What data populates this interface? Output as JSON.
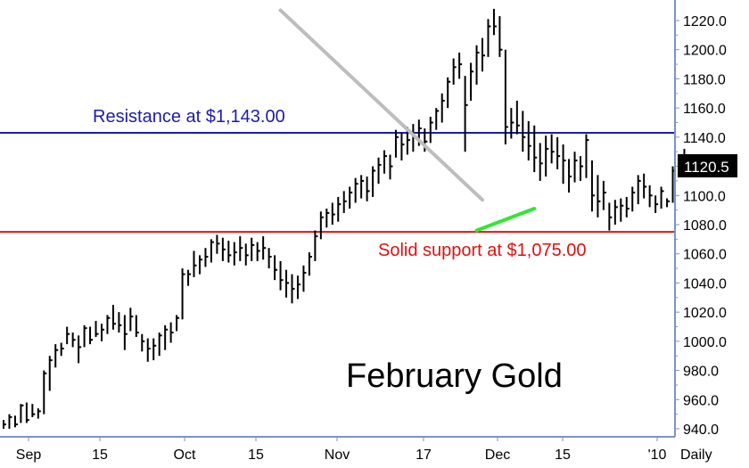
{
  "chart_data": {
    "type": "ohlc",
    "title": "February Gold",
    "period_label": "Daily",
    "ylim": [
      930,
      1232
    ],
    "y_ticks": [
      "940.0",
      "960.0",
      "980.0",
      "1000.0",
      "1020.0",
      "1040.0",
      "1060.0",
      "1080.0",
      "1100.0",
      "1120.0",
      "1140.0",
      "1160.0",
      "1180.0",
      "1200.0",
      "1220.0"
    ],
    "x_tick_labels": [
      "Sep",
      "15",
      "Oct",
      "15",
      "Nov",
      "17",
      "Dec",
      "15",
      "'10"
    ],
    "last_price": "1120.5",
    "grid": false,
    "lines": [
      {
        "name": "resistance",
        "label": "Resistance at $1,143.00",
        "value": 1143.0,
        "color": "#1c1ca8"
      },
      {
        "name": "support",
        "label": "Solid support at $1,075.00",
        "value": 1075.0,
        "color": "#e01010"
      }
    ],
    "trendlines": [
      {
        "name": "down-trendline",
        "color": "#bdbdbd",
        "from": [
          48,
          1227
        ],
        "to": [
          83,
          1097
        ]
      },
      {
        "name": "up-trendline",
        "color": "#33e633",
        "from": [
          82,
          1076
        ],
        "to": [
          92,
          1091
        ]
      }
    ],
    "bars": [
      [
        946,
        940,
        943
      ],
      [
        950,
        940,
        948
      ],
      [
        949,
        941,
        943
      ],
      [
        957,
        944,
        956
      ],
      [
        958,
        944,
        946
      ],
      [
        957,
        948,
        950
      ],
      [
        954,
        947,
        952
      ],
      [
        980,
        950,
        978
      ],
      [
        990,
        966,
        987
      ],
      [
        998,
        982,
        994
      ],
      [
        999,
        990,
        995
      ],
      [
        1010,
        998,
        1005
      ],
      [
        1006,
        996,
        1001
      ],
      [
        1004,
        985,
        996
      ],
      [
        1011,
        996,
        1009
      ],
      [
        1010,
        998,
        1001
      ],
      [
        1014,
        1003,
        1005
      ],
      [
        1012,
        1000,
        1008
      ],
      [
        1018,
        1005,
        1016
      ],
      [
        1025,
        1008,
        1012
      ],
      [
        1020,
        1006,
        1011
      ],
      [
        1018,
        994,
        1005
      ],
      [
        1023,
        1007,
        1017
      ],
      [
        1018,
        1003,
        1006
      ],
      [
        1005,
        993,
        1000
      ],
      [
        1002,
        986,
        995
      ],
      [
        1002,
        987,
        997
      ],
      [
        1006,
        990,
        1004
      ],
      [
        1011,
        994,
        1008
      ],
      [
        1013,
        999,
        1006
      ],
      [
        1018,
        1007,
        1016
      ],
      [
        1050,
        1015,
        1046
      ],
      [
        1049,
        1038,
        1046
      ],
      [
        1062,
        1044,
        1052
      ],
      [
        1059,
        1046,
        1056
      ],
      [
        1064,
        1051,
        1058
      ],
      [
        1070,
        1054,
        1068
      ],
      [
        1073,
        1060,
        1067
      ],
      [
        1071,
        1055,
        1063
      ],
      [
        1069,
        1054,
        1059
      ],
      [
        1068,
        1052,
        1061
      ],
      [
        1072,
        1055,
        1064
      ],
      [
        1067,
        1052,
        1059
      ],
      [
        1071,
        1055,
        1066
      ],
      [
        1068,
        1055,
        1062
      ],
      [
        1072,
        1056,
        1064
      ],
      [
        1064,
        1050,
        1058
      ],
      [
        1059,
        1042,
        1049
      ],
      [
        1055,
        1035,
        1042
      ],
      [
        1049,
        1030,
        1040
      ],
      [
        1046,
        1026,
        1036
      ],
      [
        1045,
        1029,
        1039
      ],
      [
        1052,
        1034,
        1047
      ],
      [
        1061,
        1045,
        1058
      ],
      [
        1076,
        1055,
        1072
      ],
      [
        1089,
        1070,
        1085
      ],
      [
        1091,
        1078,
        1088
      ],
      [
        1095,
        1080,
        1087
      ],
      [
        1099,
        1082,
        1094
      ],
      [
        1103,
        1088,
        1096
      ],
      [
        1106,
        1091,
        1102
      ],
      [
        1112,
        1095,
        1108
      ],
      [
        1114,
        1098,
        1110
      ],
      [
        1113,
        1096,
        1103
      ],
      [
        1120,
        1099,
        1117
      ],
      [
        1126,
        1108,
        1121
      ],
      [
        1131,
        1115,
        1127
      ],
      [
        1128,
        1111,
        1120
      ],
      [
        1145,
        1126,
        1140
      ],
      [
        1143,
        1124,
        1135
      ],
      [
        1147,
        1128,
        1138
      ],
      [
        1149,
        1130,
        1140
      ],
      [
        1152,
        1134,
        1146
      ],
      [
        1146,
        1130,
        1137
      ],
      [
        1154,
        1136,
        1150
      ],
      [
        1160,
        1145,
        1158
      ],
      [
        1170,
        1150,
        1165
      ],
      [
        1181,
        1160,
        1178
      ],
      [
        1194,
        1176,
        1188
      ],
      [
        1198,
        1180,
        1190
      ],
      [
        1182,
        1130,
        1162
      ],
      [
        1191,
        1165,
        1185
      ],
      [
        1203,
        1176,
        1198
      ],
      [
        1208,
        1185,
        1196
      ],
      [
        1221,
        1195,
        1216
      ],
      [
        1228,
        1210,
        1216
      ],
      [
        1223,
        1195,
        1200
      ],
      [
        1200,
        1135,
        1147
      ],
      [
        1160,
        1139,
        1150
      ],
      [
        1165,
        1142,
        1148
      ],
      [
        1158,
        1130,
        1140
      ],
      [
        1151,
        1124,
        1134
      ],
      [
        1148,
        1116,
        1126
      ],
      [
        1136,
        1110,
        1122
      ],
      [
        1141,
        1113,
        1132
      ],
      [
        1142,
        1122,
        1130
      ],
      [
        1140,
        1118,
        1127
      ],
      [
        1135,
        1108,
        1124
      ],
      [
        1125,
        1102,
        1113
      ],
      [
        1130,
        1109,
        1124
      ],
      [
        1127,
        1110,
        1120
      ],
      [
        1142,
        1112,
        1138
      ],
      [
        1124,
        1089,
        1100
      ],
      [
        1114,
        1085,
        1096
      ],
      [
        1110,
        1090,
        1102
      ],
      [
        1095,
        1076,
        1085
      ],
      [
        1097,
        1080,
        1092
      ],
      [
        1098,
        1082,
        1093
      ],
      [
        1099,
        1085,
        1091
      ],
      [
        1106,
        1089,
        1102
      ],
      [
        1114,
        1094,
        1110
      ],
      [
        1115,
        1098,
        1106
      ],
      [
        1107,
        1092,
        1100
      ],
      [
        1100,
        1088,
        1094
      ],
      [
        1106,
        1091,
        1103
      ],
      [
        1098,
        1092,
        1096
      ],
      [
        1120,
        1095,
        1117
      ],
      [
        1128,
        1113,
        1124
      ],
      [
        1132,
        1116,
        1121
      ]
    ]
  }
}
